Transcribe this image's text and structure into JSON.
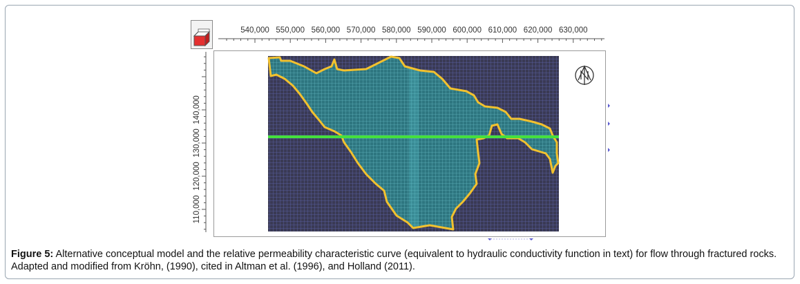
{
  "figure": {
    "caption_label": "Figure 5:",
    "caption_text": " Alternative conceptual model and the relative permeability characteristic curve (equivalent to hydraulic conductivity function in text) for flow through fractured rocks. Adapted and modified from Kröhn, (1990), cited in Altman et al. (1996), and Holland (2011)."
  },
  "map": {
    "x_ticks": [
      "540,000",
      "550,000",
      "560,000",
      "570,000",
      "580,000",
      "590,000",
      "600,000",
      "610,000",
      "620,000",
      "630,000"
    ],
    "y_ticks": [
      "110,000",
      "120,000",
      "130,000",
      "140,000"
    ],
    "colors": {
      "background": "#3a3a54",
      "boundary": "#f2c12e",
      "section_line": "#45e03c",
      "interior_fill": "#2f7d84",
      "grid_line": "#6b74c8"
    },
    "icons": [
      "model-box-icon",
      "north-arrow-icon"
    ]
  }
}
